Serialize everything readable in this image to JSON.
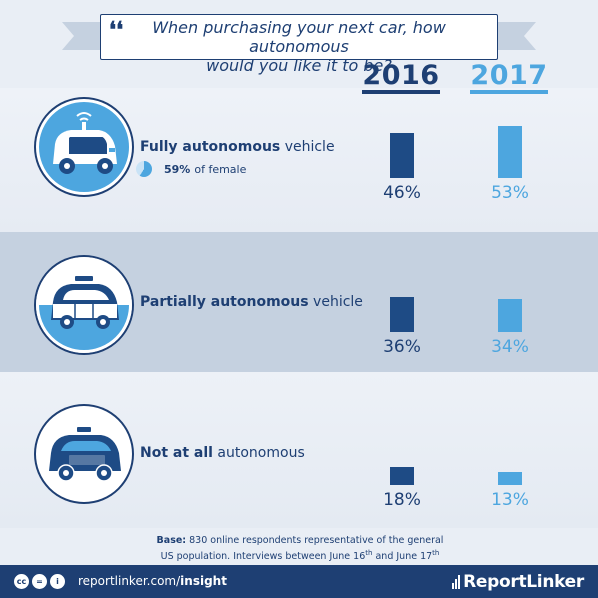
{
  "title": {
    "line1": "When purchasing your next car, how autonomous",
    "line2": "would you like it to be?"
  },
  "chart_data": {
    "type": "bar",
    "title": "When purchasing your next car, how autonomous would you like it to be?",
    "categories": [
      "Fully autonomous vehicle",
      "Partially autonomous vehicle",
      "Not at all autonomous"
    ],
    "series": [
      {
        "name": "2016",
        "values": [
          46,
          36,
          18
        ]
      },
      {
        "name": "2017",
        "values": [
          53,
          34,
          13
        ]
      }
    ],
    "unit": "%",
    "ylim": [
      0,
      53
    ],
    "colors": {
      "2016": "#1e4b85",
      "2017": "#4da6df"
    }
  },
  "rows": [
    {
      "label_bold": "Fully autonomous",
      "label_rest": " vehicle",
      "v2016": "46%",
      "v2017": "53%",
      "icon": "autonomous-car-icon"
    },
    {
      "label_bold": "Partially  autonomous",
      "label_rest": " vehicle",
      "v2016": "36%",
      "v2017": "34%",
      "icon": "semi-autonomous-car-icon"
    },
    {
      "label_bold": "Not at all",
      "label_rest": " autonomous",
      "v2016": "18%",
      "v2017": "13%",
      "icon": "manual-car-icon"
    }
  ],
  "sub_note": {
    "value": "59%",
    "text": "of female",
    "fraction": 0.59
  },
  "years": {
    "y2016": "2016",
    "y2017": "2017"
  },
  "footnote": {
    "bold": "Base:",
    "line1": " 830 online respondents representative of the general",
    "line2a": "US population. Interviews between June 16",
    "sup1": "th",
    "line2b": " and June 17",
    "sup2": "th"
  },
  "footer": {
    "url_plain": "reportlinker.com/",
    "url_bold": "insight",
    "brand": "ReportLinker",
    "license_icons": [
      "cc",
      "=",
      "i"
    ]
  }
}
